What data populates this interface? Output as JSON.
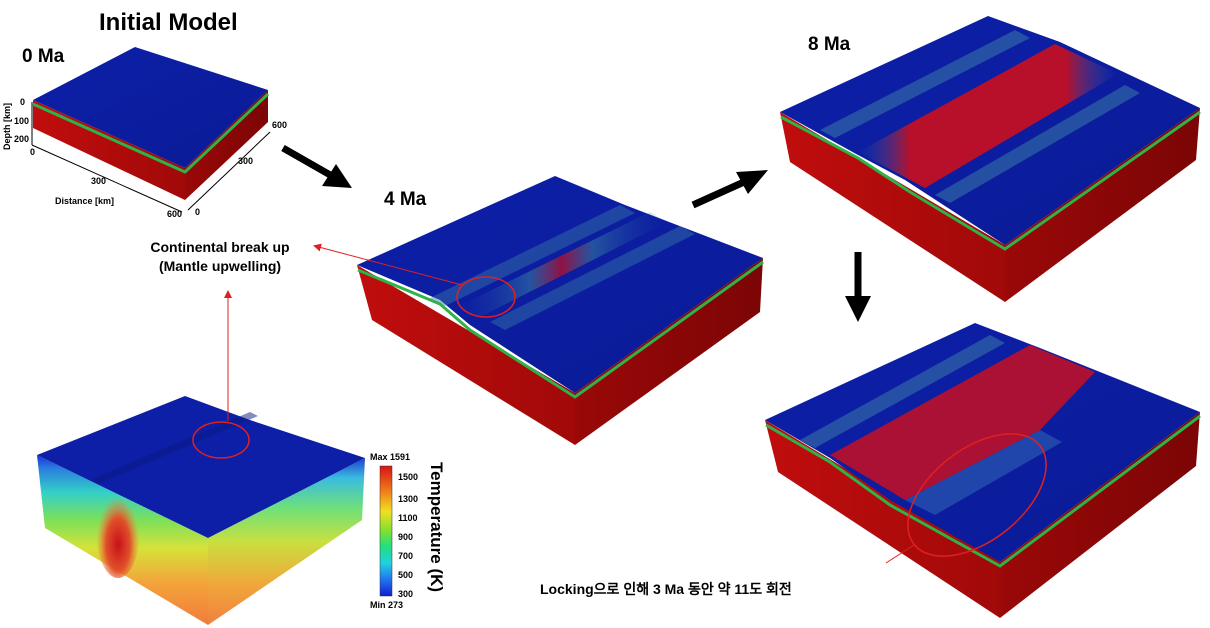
{
  "title": "Initial Model",
  "stages": {
    "s0": "0 Ma",
    "s4": "4 Ma",
    "s8": "8 Ma"
  },
  "axes": {
    "depth_label": "Depth [km]",
    "depth_ticks": [
      "0",
      "100",
      "200"
    ],
    "distance_label": "Distance [km]",
    "distance_ticks": [
      "0",
      "300",
      "600"
    ],
    "side_ticks": [
      "600",
      "300",
      "0"
    ]
  },
  "callouts": {
    "breakup_line1": "Continental break up",
    "breakup_line2": "(Mantle upwelling)",
    "rotation": "Locking으로 인해 3 Ma 동안 약 11도 회전"
  },
  "colorbar": {
    "title": "Temperature (K)",
    "max_label": "Max",
    "max_value": "1591",
    "min_label": "Min",
    "min_value": "273",
    "ticks": [
      "1500",
      "1300",
      "1100",
      "900",
      "700",
      "500",
      "300"
    ]
  },
  "colors": {
    "lithosphere_blue": "#0b1fa6",
    "mantle_red": "#b00d0d",
    "boundary_green": "#2fb24a",
    "annotation_red": "#e02020",
    "arrow_black": "#000000"
  }
}
